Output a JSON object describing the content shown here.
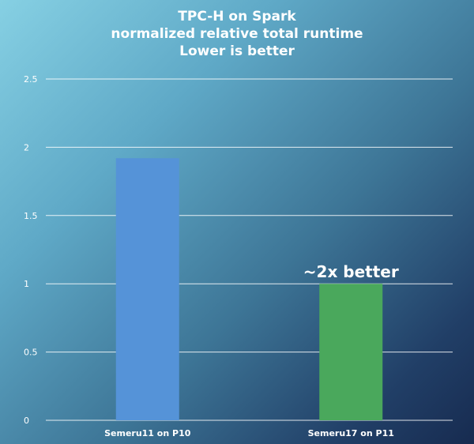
{
  "chart_data": {
    "type": "bar",
    "title_lines": [
      "TPC-H on Spark",
      "normalized relative total runtime",
      "Lower is better"
    ],
    "categories": [
      "Semeru11 on P10",
      "Semeru17 on P11"
    ],
    "values": [
      1.92,
      1.0
    ],
    "bar_colors": [
      "#5593d8",
      "#4aa85c"
    ],
    "ylim": [
      0,
      2.5
    ],
    "yticks": [
      "0",
      "0.5",
      "1",
      "1.5",
      "2",
      "2.5"
    ],
    "grid": true,
    "annotations": [
      {
        "text": "~2x better",
        "category_index": 1
      }
    ]
  }
}
